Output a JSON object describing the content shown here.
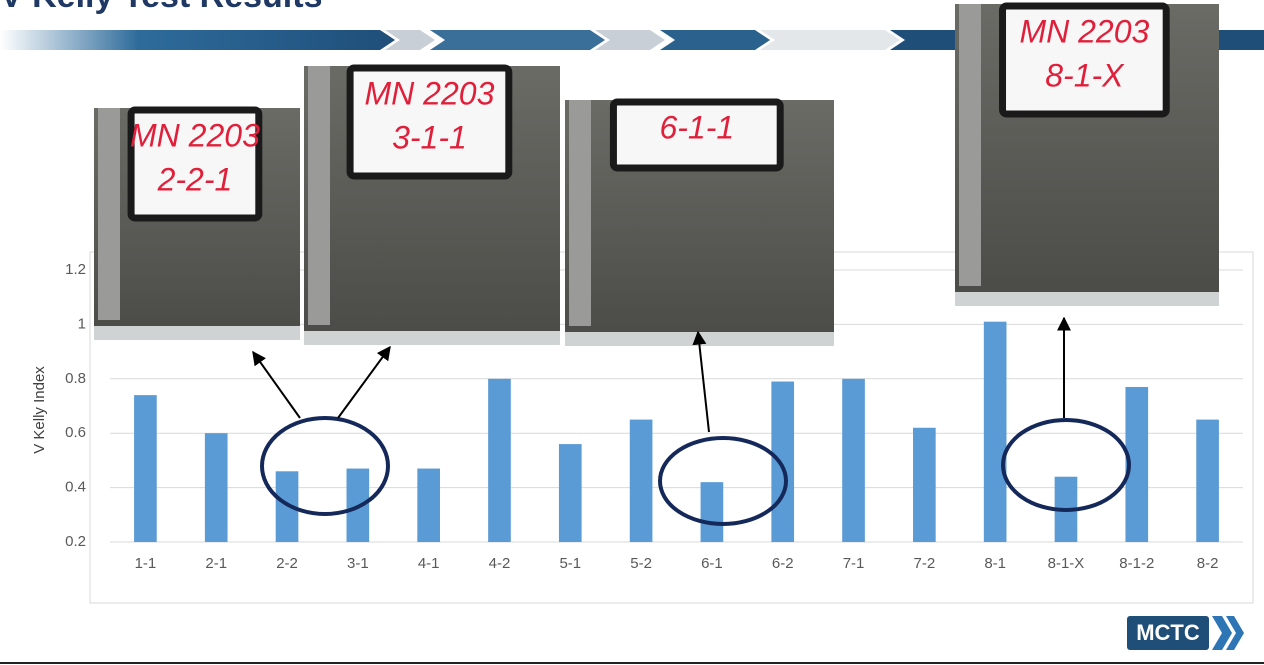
{
  "title": "V Kelly Test Results",
  "chart_data": {
    "type": "bar",
    "y_label": "V Kelly Index",
    "categories": [
      "1-1",
      "2-1",
      "2-2",
      "3-1",
      "4-1",
      "4-2",
      "5-1",
      "5-2",
      "6-1",
      "6-2",
      "7-1",
      "7-2",
      "8-1",
      "8-1-X",
      "8-1-2",
      "8-2"
    ],
    "values": [
      0.74,
      0.6,
      0.46,
      0.47,
      0.47,
      0.8,
      0.56,
      0.65,
      0.42,
      0.79,
      0.8,
      0.62,
      1.01,
      0.44,
      0.77,
      0.65
    ],
    "color": "#5b9bd5",
    "ylim": [
      0.2,
      1.2
    ],
    "yticks": [
      0.2,
      0.4,
      0.6,
      0.8,
      1,
      1.2
    ],
    "grid": true
  },
  "photos": [
    {
      "lines": [
        "MN 2203",
        "2-2-1"
      ]
    },
    {
      "lines": [
        "MN 2203",
        "3-1-1"
      ]
    },
    {
      "lines": [
        "6-1-1"
      ]
    },
    {
      "lines": [
        "MN 2203",
        "8-1-X"
      ]
    }
  ],
  "logo": "MCTC"
}
